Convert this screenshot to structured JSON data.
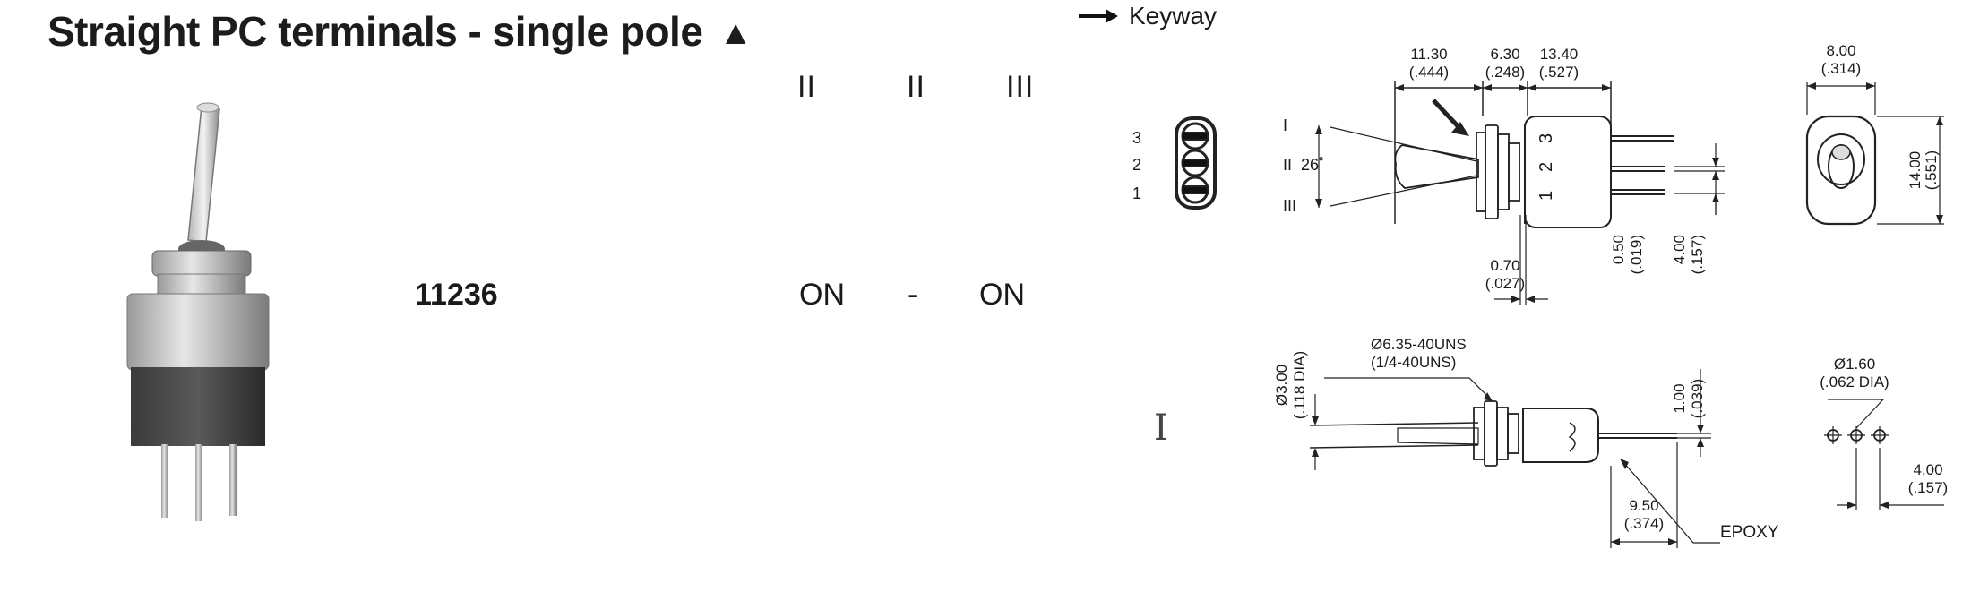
{
  "title": "Straight PC terminals - single pole",
  "title_icon": "triangle-up-icon",
  "positions": [
    "II",
    "II",
    "III"
  ],
  "part_number": "11236",
  "function": {
    "left": "ON",
    "sep": "-",
    "right": "ON"
  },
  "keyway_label": "Keyway",
  "pin_numbers": [
    "3",
    "2",
    "1"
  ],
  "side_view": {
    "dims_top": [
      {
        "mm": "11.30",
        "inch": "(.444)"
      },
      {
        "mm": "6.30",
        "inch": "(.248)"
      },
      {
        "mm": "13.40",
        "inch": "(.527)"
      }
    ],
    "angle_positions": [
      "I",
      "II",
      "III"
    ],
    "angle": "26˚",
    "body_pins": [
      "1",
      "2",
      "3"
    ],
    "dim_070": {
      "mm": "0.70",
      "inch": "(.027)"
    },
    "dim_050": {
      "mm": "0.50",
      "inch": "(.019)"
    },
    "dim_400": {
      "mm": "4.00",
      "inch": "(.157)"
    }
  },
  "end_view": {
    "width": {
      "mm": "8.00",
      "inch": "(.314)"
    },
    "height": {
      "mm": "14.00",
      "inch": "(.551)"
    }
  },
  "bottom_view": {
    "bushing": {
      "mm": "Ø3.00",
      "inch": "(.118 DIA)"
    },
    "thread": {
      "line1": "Ø6.35-40UNS",
      "line2": "(1/4-40UNS)"
    },
    "dim_100": {
      "mm": "1.00",
      "inch": "(.039)"
    },
    "dim_950": {
      "mm": "9.50",
      "inch": "(.374)"
    },
    "epoxy": "EPOXY"
  },
  "pcb_view": {
    "hole": {
      "mm": "Ø1.60",
      "inch": "(.062 DIA)"
    },
    "pitch": {
      "mm": "4.00",
      "inch": "(.157)"
    }
  }
}
